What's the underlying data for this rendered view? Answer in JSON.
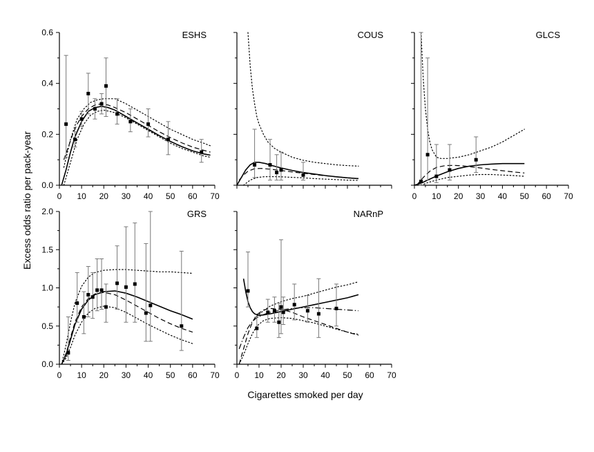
{
  "figure": {
    "ylabel": "Excess odds ratio per pack-year",
    "xlabel": "Cigarettes smoked per day"
  },
  "chart_data": [
    {
      "type": "scatter",
      "title": "ESHS",
      "xlim": [
        0,
        70
      ],
      "ylim": [
        0,
        0.6
      ],
      "xticks": [
        "0",
        "10",
        "20",
        "30",
        "40",
        "50",
        "60",
        "70"
      ],
      "yticks": [
        "0.0",
        "0.2",
        "0.4",
        "0.6"
      ],
      "points": [
        {
          "x": 3,
          "y": 0.24,
          "lo": 0.11,
          "hi": 0.51
        },
        {
          "x": 7,
          "y": 0.18,
          "lo": 0.15,
          "hi": 0.21
        },
        {
          "x": 10,
          "y": 0.26,
          "lo": 0.23,
          "hi": 0.29
        },
        {
          "x": 13,
          "y": 0.36,
          "lo": 0.28,
          "hi": 0.44
        },
        {
          "x": 16,
          "y": 0.3,
          "lo": 0.26,
          "hi": 0.34
        },
        {
          "x": 19,
          "y": 0.32,
          "lo": 0.28,
          "hi": 0.36
        },
        {
          "x": 21,
          "y": 0.39,
          "lo": 0.27,
          "hi": 0.5
        },
        {
          "x": 26,
          "y": 0.28,
          "lo": 0.24,
          "hi": 0.34
        },
        {
          "x": 32,
          "y": 0.25,
          "lo": 0.21,
          "hi": 0.3
        },
        {
          "x": 40,
          "y": 0.24,
          "lo": 0.19,
          "hi": 0.3
        },
        {
          "x": 49,
          "y": 0.18,
          "lo": 0.12,
          "hi": 0.25
        },
        {
          "x": 64,
          "y": 0.13,
          "lo": 0.09,
          "hi": 0.18
        }
      ],
      "curves": [
        {
          "style": "solid",
          "x": [
            1,
            3,
            5,
            7,
            10,
            13,
            16,
            19,
            22,
            25,
            30,
            35,
            40,
            45,
            50,
            55,
            60,
            65,
            68
          ],
          "y": [
            0.0,
            0.06,
            0.13,
            0.19,
            0.25,
            0.29,
            0.305,
            0.31,
            0.305,
            0.295,
            0.27,
            0.245,
            0.22,
            0.195,
            0.172,
            0.152,
            0.135,
            0.123,
            0.118
          ]
        },
        {
          "style": "dashed",
          "x": [
            2,
            4,
            6,
            8,
            10,
            13,
            16,
            19,
            22,
            25,
            30,
            35,
            40,
            45,
            50,
            55,
            60,
            65,
            68
          ],
          "y": [
            0.1,
            0.15,
            0.2,
            0.24,
            0.27,
            0.3,
            0.315,
            0.32,
            0.315,
            0.305,
            0.285,
            0.26,
            0.235,
            0.21,
            0.187,
            0.167,
            0.15,
            0.137,
            0.13
          ]
        },
        {
          "style": "dotted",
          "x": [
            2,
            5,
            8,
            11,
            14,
            17,
            20,
            25,
            30,
            35,
            40,
            45,
            50,
            55,
            60,
            65,
            68
          ],
          "y": [
            0.07,
            0.18,
            0.26,
            0.3,
            0.325,
            0.335,
            0.34,
            0.34,
            0.32,
            0.295,
            0.27,
            0.245,
            0.22,
            0.2,
            0.18,
            0.165,
            0.155
          ]
        },
        {
          "style": "dotted",
          "x": [
            2,
            5,
            8,
            11,
            14,
            17,
            20,
            25,
            30,
            35,
            40,
            45,
            50,
            55,
            60,
            65,
            68
          ],
          "y": [
            0.0,
            0.09,
            0.18,
            0.24,
            0.275,
            0.29,
            0.295,
            0.285,
            0.265,
            0.24,
            0.215,
            0.19,
            0.165,
            0.145,
            0.13,
            0.115,
            0.11
          ]
        }
      ]
    },
    {
      "type": "scatter",
      "title": "COUS",
      "xlim": [
        0,
        70
      ],
      "ylim": [
        0,
        0.6
      ],
      "xticks": [],
      "yticks": [],
      "points": [
        {
          "x": 8,
          "y": 0.08,
          "lo": 0.03,
          "hi": 0.22
        },
        {
          "x": 15,
          "y": 0.08,
          "lo": 0.02,
          "hi": 0.18
        },
        {
          "x": 18,
          "y": 0.05,
          "lo": 0.02,
          "hi": 0.12
        },
        {
          "x": 20,
          "y": 0.06,
          "lo": 0.02,
          "hi": 0.13
        },
        {
          "x": 30,
          "y": 0.04,
          "lo": 0.02,
          "hi": 0.09
        }
      ],
      "curves": [
        {
          "style": "solid",
          "x": [
            0,
            2,
            4,
            6,
            8,
            10,
            13,
            16,
            20,
            25,
            30,
            35,
            40,
            45,
            50,
            55
          ],
          "y": [
            0.0,
            0.03,
            0.06,
            0.08,
            0.09,
            0.09,
            0.085,
            0.077,
            0.068,
            0.058,
            0.05,
            0.044,
            0.038,
            0.033,
            0.029,
            0.026
          ]
        },
        {
          "style": "dashed",
          "x": [
            1,
            3,
            5,
            8,
            11,
            15,
            20,
            25,
            30,
            35,
            40,
            45,
            50,
            55
          ],
          "y": [
            0.02,
            0.04,
            0.055,
            0.065,
            0.066,
            0.063,
            0.058,
            0.052,
            0.047,
            0.042,
            0.037,
            0.033,
            0.029,
            0.026
          ]
        },
        {
          "style": "dotted",
          "x": [
            5,
            6,
            7,
            8,
            9,
            10,
            12,
            14,
            17,
            20,
            25,
            30,
            35,
            40,
            45,
            50,
            55
          ],
          "y": [
            0.6,
            0.47,
            0.38,
            0.32,
            0.27,
            0.24,
            0.2,
            0.17,
            0.145,
            0.13,
            0.11,
            0.098,
            0.09,
            0.085,
            0.08,
            0.077,
            0.075
          ]
        },
        {
          "style": "dotted",
          "x": [
            3,
            6,
            9,
            12,
            15,
            20,
            25,
            30,
            35,
            40,
            45,
            50,
            55
          ],
          "y": [
            0.0,
            0.02,
            0.03,
            0.033,
            0.034,
            0.033,
            0.031,
            0.029,
            0.026,
            0.024,
            0.022,
            0.02,
            0.019
          ]
        }
      ]
    },
    {
      "type": "scatter",
      "title": "GLCS",
      "xlim": [
        0,
        70
      ],
      "ylim": [
        0,
        0.6
      ],
      "xticks": [
        "0",
        "10",
        "20",
        "30",
        "40",
        "50",
        "60",
        "70"
      ],
      "yticks": [],
      "points": [
        {
          "x": 3,
          "y": 0.015,
          "lo": 0.0,
          "hi": 0.6
        },
        {
          "x": 6,
          "y": 0.12,
          "lo": 0.02,
          "hi": 0.5
        },
        {
          "x": 10,
          "y": 0.035,
          "lo": 0.01,
          "hi": 0.16
        },
        {
          "x": 16,
          "y": 0.06,
          "lo": 0.02,
          "hi": 0.16
        },
        {
          "x": 28,
          "y": 0.1,
          "lo": 0.05,
          "hi": 0.19
        }
      ],
      "curves": [
        {
          "style": "solid",
          "x": [
            0,
            3,
            6,
            10,
            15,
            20,
            25,
            30,
            35,
            40,
            45,
            50
          ],
          "y": [
            0.0,
            0.008,
            0.02,
            0.036,
            0.053,
            0.066,
            0.075,
            0.08,
            0.083,
            0.085,
            0.085,
            0.085
          ]
        },
        {
          "style": "dashed",
          "x": [
            1,
            4,
            7,
            10,
            14,
            18,
            22,
            26,
            30,
            35,
            40,
            45,
            50
          ],
          "y": [
            0.0,
            0.03,
            0.055,
            0.07,
            0.077,
            0.078,
            0.076,
            0.072,
            0.068,
            0.062,
            0.057,
            0.052,
            0.048
          ]
        },
        {
          "style": "dotted",
          "x": [
            3,
            4,
            5,
            6,
            7,
            8,
            10,
            12,
            15,
            20,
            25,
            30,
            35,
            40,
            45,
            50
          ],
          "y": [
            0.6,
            0.42,
            0.3,
            0.22,
            0.17,
            0.14,
            0.11,
            0.105,
            0.105,
            0.11,
            0.12,
            0.135,
            0.15,
            0.17,
            0.195,
            0.22
          ]
        },
        {
          "style": "dotted",
          "x": [
            3,
            6,
            10,
            15,
            20,
            25,
            30,
            35,
            40,
            45,
            50
          ],
          "y": [
            0.0,
            0.01,
            0.02,
            0.03,
            0.035,
            0.04,
            0.042,
            0.042,
            0.04,
            0.038,
            0.035
          ]
        }
      ]
    },
    {
      "type": "scatter",
      "title": "GRS",
      "xlim": [
        0,
        70
      ],
      "ylim": [
        0,
        2.0
      ],
      "xticks": [
        "0",
        "10",
        "20",
        "30",
        "40",
        "50",
        "60",
        "70"
      ],
      "yticks": [
        "0.0",
        "0.5",
        "1.0",
        "1.5",
        "2.0"
      ],
      "points": [
        {
          "x": 4,
          "y": 0.15,
          "lo": 0.05,
          "hi": 0.62
        },
        {
          "x": 8,
          "y": 0.8,
          "lo": 0.55,
          "hi": 1.2
        },
        {
          "x": 11,
          "y": 0.62,
          "lo": 0.4,
          "hi": 0.95
        },
        {
          "x": 13,
          "y": 0.91,
          "lo": 0.62,
          "hi": 1.28
        },
        {
          "x": 15,
          "y": 0.88,
          "lo": 0.6,
          "hi": 1.2
        },
        {
          "x": 17,
          "y": 0.97,
          "lo": 0.7,
          "hi": 1.38
        },
        {
          "x": 19,
          "y": 0.97,
          "lo": 0.72,
          "hi": 1.38
        },
        {
          "x": 21,
          "y": 0.75,
          "lo": 0.55,
          "hi": 1.05
        },
        {
          "x": 26,
          "y": 1.06,
          "lo": 0.72,
          "hi": 1.55
        },
        {
          "x": 30,
          "y": 1.01,
          "lo": 0.55,
          "hi": 1.8
        },
        {
          "x": 34,
          "y": 1.05,
          "lo": 0.55,
          "hi": 1.85
        },
        {
          "x": 39,
          "y": 0.67,
          "lo": 0.3,
          "hi": 1.58
        },
        {
          "x": 41,
          "y": 0.77,
          "lo": 0.3,
          "hi": 2.0
        },
        {
          "x": 55,
          "y": 0.5,
          "lo": 0.18,
          "hi": 1.48
        }
      ],
      "curves": [
        {
          "style": "solid",
          "x": [
            1,
            3,
            5,
            7,
            10,
            13,
            16,
            20,
            25,
            30,
            35,
            40,
            45,
            50,
            55,
            60
          ],
          "y": [
            0.0,
            0.12,
            0.32,
            0.52,
            0.72,
            0.84,
            0.91,
            0.95,
            0.96,
            0.93,
            0.88,
            0.82,
            0.76,
            0.7,
            0.65,
            0.59
          ]
        },
        {
          "style": "dashed",
          "x": [
            1,
            3,
            5,
            7,
            10,
            13,
            16,
            20,
            25,
            30,
            35,
            40,
            45,
            50,
            55,
            60
          ],
          "y": [
            0.0,
            0.14,
            0.35,
            0.55,
            0.75,
            0.86,
            0.92,
            0.94,
            0.91,
            0.84,
            0.76,
            0.68,
            0.6,
            0.53,
            0.47,
            0.42
          ]
        },
        {
          "style": "dotted",
          "x": [
            1,
            3,
            5,
            7,
            10,
            13,
            16,
            20,
            25,
            30,
            35,
            40,
            45,
            50,
            55,
            60
          ],
          "y": [
            0.0,
            0.25,
            0.55,
            0.8,
            1.02,
            1.14,
            1.2,
            1.23,
            1.24,
            1.24,
            1.23,
            1.22,
            1.21,
            1.21,
            1.2,
            1.19
          ]
        },
        {
          "style": "dotted",
          "x": [
            1,
            3,
            5,
            7,
            10,
            13,
            16,
            20,
            25,
            30,
            35,
            40,
            45,
            50,
            55,
            60
          ],
          "y": [
            0.0,
            0.08,
            0.22,
            0.38,
            0.55,
            0.67,
            0.73,
            0.76,
            0.74,
            0.68,
            0.6,
            0.52,
            0.45,
            0.38,
            0.32,
            0.27
          ]
        }
      ]
    },
    {
      "type": "scatter",
      "title": "NARnP",
      "xlim": [
        0,
        70
      ],
      "ylim": [
        0,
        2.0
      ],
      "xticks": [
        "0",
        "10",
        "20",
        "30",
        "40",
        "50",
        "60",
        "70"
      ],
      "yticks": [],
      "points": [
        {
          "x": 5,
          "y": 0.96,
          "lo": 0.75,
          "hi": 1.47
        },
        {
          "x": 9,
          "y": 0.47,
          "lo": 0.35,
          "hi": 0.62
        },
        {
          "x": 14,
          "y": 0.68,
          "lo": 0.55,
          "hi": 0.85
        },
        {
          "x": 17,
          "y": 0.7,
          "lo": 0.55,
          "hi": 0.88
        },
        {
          "x": 19,
          "y": 0.55,
          "lo": 0.35,
          "hi": 0.8
        },
        {
          "x": 20,
          "y": 0.75,
          "lo": 0.4,
          "hi": 1.63
        },
        {
          "x": 21,
          "y": 0.68,
          "lo": 0.52,
          "hi": 0.88
        },
        {
          "x": 26,
          "y": 0.78,
          "lo": 0.58,
          "hi": 1.05
        },
        {
          "x": 32,
          "y": 0.7,
          "lo": 0.55,
          "hi": 0.9
        },
        {
          "x": 37,
          "y": 0.66,
          "lo": 0.35,
          "hi": 1.12
        },
        {
          "x": 45,
          "y": 0.73,
          "lo": 0.5,
          "hi": 1.05
        }
      ],
      "curves": [
        {
          "style": "solid",
          "x": [
            3,
            4,
            5,
            6,
            7,
            8,
            10,
            12,
            15,
            20,
            25,
            30,
            35,
            40,
            45,
            50,
            55
          ],
          "y": [
            1.12,
            0.95,
            0.82,
            0.74,
            0.69,
            0.66,
            0.64,
            0.645,
            0.66,
            0.69,
            0.72,
            0.75,
            0.78,
            0.81,
            0.84,
            0.87,
            0.91
          ]
        },
        {
          "style": "dashed",
          "x": [
            1,
            3,
            5,
            7,
            9,
            12,
            15,
            20,
            25,
            30,
            35,
            40,
            45,
            50,
            55
          ],
          "y": [
            0.0,
            0.2,
            0.4,
            0.55,
            0.65,
            0.71,
            0.73,
            0.72,
            0.68,
            0.62,
            0.57,
            0.52,
            0.47,
            0.42,
            0.38
          ]
        },
        {
          "style": "dashdot",
          "x": [
            1,
            3,
            5,
            7,
            9,
            12,
            15,
            20,
            25,
            30,
            35,
            40,
            45,
            50,
            55
          ],
          "y": [
            0.2,
            0.35,
            0.48,
            0.56,
            0.61,
            0.65,
            0.68,
            0.71,
            0.73,
            0.74,
            0.74,
            0.73,
            0.72,
            0.71,
            0.7
          ]
        },
        {
          "style": "dotted",
          "x": [
            1,
            3,
            5,
            7,
            9,
            12,
            15,
            20,
            25,
            30,
            35,
            40,
            45,
            50,
            55
          ],
          "y": [
            0.0,
            0.12,
            0.27,
            0.4,
            0.5,
            0.57,
            0.6,
            0.61,
            0.6,
            0.57,
            0.54,
            0.5,
            0.46,
            0.42,
            0.39
          ]
        },
        {
          "style": "dotted",
          "x": [
            9,
            12,
            15,
            20,
            25,
            30,
            35,
            40,
            45,
            50,
            55
          ],
          "y": [
            0.63,
            0.7,
            0.76,
            0.82,
            0.86,
            0.89,
            0.93,
            0.97,
            1.01,
            1.04,
            1.08
          ]
        }
      ]
    }
  ]
}
